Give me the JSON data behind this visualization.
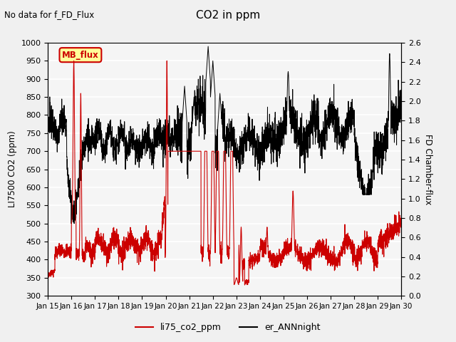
{
  "title": "CO2 in ppm",
  "subtitle": "No data for f_FD_Flux",
  "ylabel_left": "LI7500 CO2 (ppm)",
  "ylabel_right": "FD Chamber-flux",
  "ylim_left": [
    300,
    1000
  ],
  "ylim_right": [
    0.0,
    2.6
  ],
  "yticks_left": [
    300,
    350,
    400,
    450,
    500,
    550,
    600,
    650,
    700,
    750,
    800,
    850,
    900,
    950,
    1000
  ],
  "yticks_right": [
    0.0,
    0.2,
    0.4,
    0.6,
    0.8,
    1.0,
    1.2,
    1.4,
    1.6,
    1.8,
    2.0,
    2.2,
    2.4,
    2.6
  ],
  "xtick_labels": [
    "Jan 15",
    "Jan 16",
    "Jan 17",
    "Jan 18",
    "Jan 19",
    "Jan 20",
    "Jan 21",
    "Jan 22",
    "Jan 23",
    "Jan 24",
    "Jan 25",
    "Jan 26",
    "Jan 27",
    "Jan 28",
    "Jan 29",
    "Jan 30"
  ],
  "legend_label1": "li75_co2_ppm",
  "legend_label2": "er_ANNnight",
  "legend_box_label": "MB_flux",
  "line1_color": "#cc0000",
  "line2_color": "#000000",
  "legend_box_color": "#ffff99",
  "legend_box_edge": "#cc0000",
  "bg_color": "#f0f0f0",
  "plot_bg": "#f5f5f5",
  "grid_color": "#ffffff"
}
